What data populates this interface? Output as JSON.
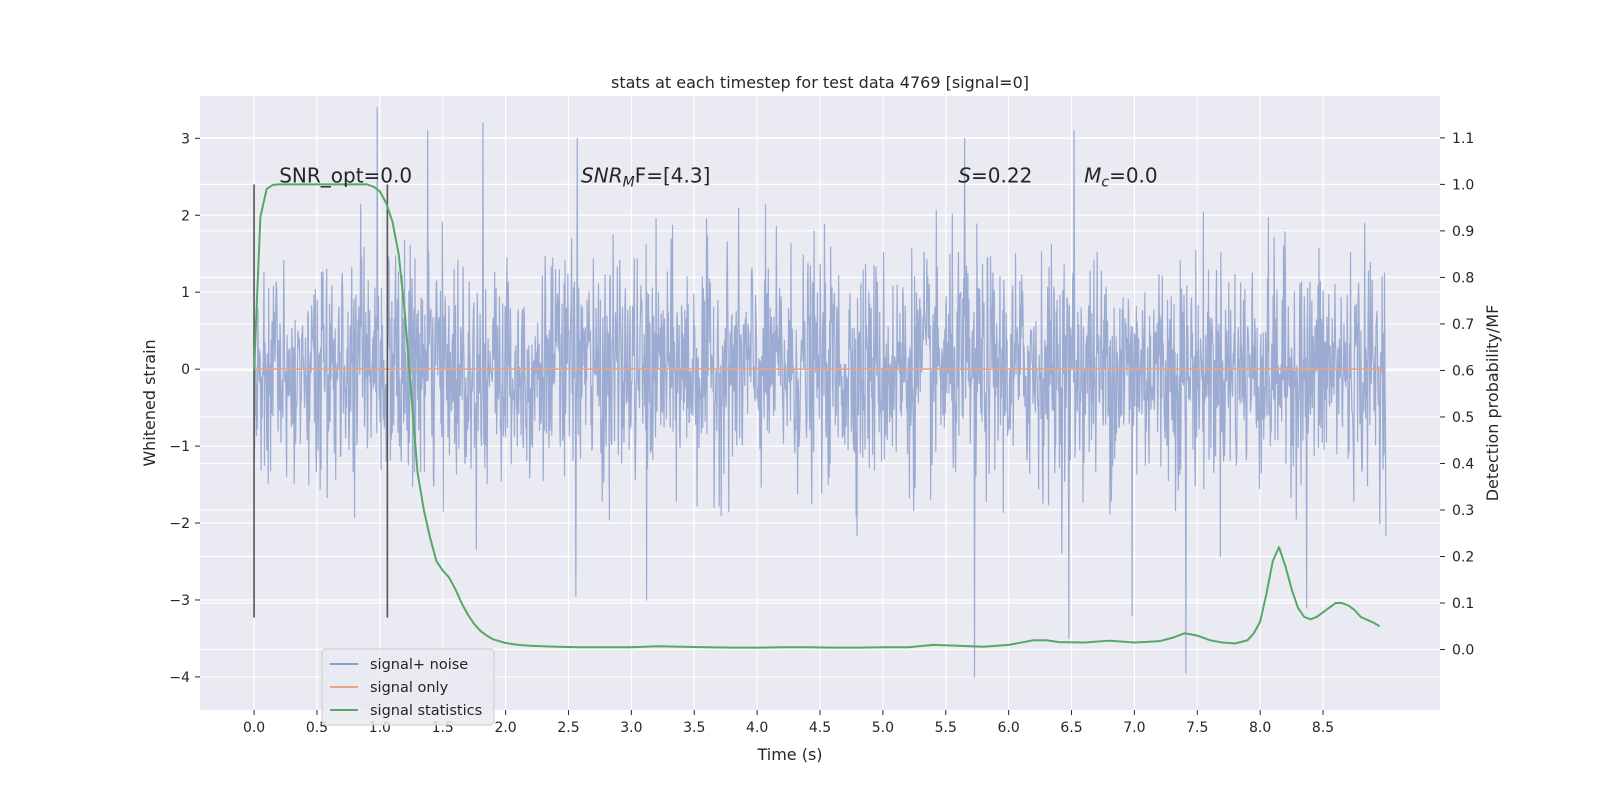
{
  "chart_data": {
    "type": "line",
    "title": "stats at each timestep for test data 4769 [signal=0]",
    "xlabel": "Time (s)",
    "ylabel_left": "Whitened strain",
    "ylabel_right": "Detection probability/MF",
    "xlim": [
      -0.43,
      9.43
    ],
    "ylim_left": [
      -4.43,
      3.55
    ],
    "ylim_right": [
      -0.13,
      1.19
    ],
    "x_ticks": [
      0.0,
      0.5,
      1.0,
      1.5,
      2.0,
      2.5,
      3.0,
      3.5,
      4.0,
      4.5,
      5.0,
      5.5,
      6.0,
      6.5,
      7.0,
      7.5,
      8.0,
      8.5
    ],
    "x_tick_labels": [
      "0.0",
      "0.5",
      "1.0",
      "1.5",
      "2.0",
      "2.5",
      "3.0",
      "3.5",
      "4.0",
      "4.5",
      "5.0",
      "5.5",
      "6.0",
      "6.5",
      "7.0",
      "7.5",
      "8.0",
      "8.5"
    ],
    "y_left_ticks": [
      3,
      2,
      1,
      0,
      -1,
      -2,
      -3,
      -4
    ],
    "y_left_tick_labels": [
      "3",
      "2",
      "1",
      "0",
      "−1",
      "−2",
      "−3",
      "−4"
    ],
    "y_right_ticks": [
      1.1,
      1.0,
      0.9,
      0.8,
      0.7,
      0.6,
      0.5,
      0.4,
      0.3,
      0.2,
      0.1,
      0.0
    ],
    "y_right_tick_labels": [
      "1.1",
      "1.0",
      "0.9",
      "0.8",
      "0.7",
      "0.6",
      "0.5",
      "0.4",
      "0.3",
      "0.2",
      "0.1",
      "0.0"
    ],
    "grid": true,
    "legend_position": "lower-left",
    "series": [
      {
        "name": "signal+ noise",
        "color": "#8da0cb",
        "axis": "left",
        "kind": "noise",
        "x_range": [
          0.0,
          9.0
        ],
        "envelope": [
          -1.6,
          1.6
        ],
        "notable_peaks": [
          [
            0.98,
            3.4
          ],
          [
            1.38,
            3.1
          ],
          [
            1.82,
            3.2
          ],
          [
            2.57,
            3.0
          ],
          [
            5.65,
            3.0
          ],
          [
            6.52,
            3.1
          ],
          [
            5.73,
            -4.0
          ],
          [
            6.48,
            -3.5
          ],
          [
            7.41,
            -3.95
          ],
          [
            6.98,
            -3.2
          ],
          [
            3.12,
            -3.0
          ],
          [
            2.56,
            -2.95
          ],
          [
            8.37,
            -3.1
          ]
        ]
      },
      {
        "name": "signal only",
        "color": "#e5a58a",
        "axis": "left",
        "x": [
          0.0,
          9.0
        ],
        "y": [
          0.0,
          0.0
        ]
      },
      {
        "name": "signal statistics",
        "color": "#55a868",
        "axis": "right",
        "x": [
          0.0,
          0.05,
          0.1,
          0.15,
          0.2,
          0.3,
          0.4,
          0.5,
          0.6,
          0.7,
          0.8,
          0.9,
          0.95,
          1.0,
          1.05,
          1.1,
          1.15,
          1.2,
          1.25,
          1.3,
          1.35,
          1.4,
          1.45,
          1.5,
          1.55,
          1.6,
          1.65,
          1.7,
          1.75,
          1.8,
          1.85,
          1.9,
          2.0,
          2.1,
          2.2,
          2.4,
          2.6,
          2.8,
          3.0,
          3.2,
          3.4,
          3.6,
          3.8,
          4.0,
          4.2,
          4.4,
          4.6,
          4.8,
          5.0,
          5.2,
          5.4,
          5.6,
          5.8,
          6.0,
          6.2,
          6.3,
          6.4,
          6.6,
          6.8,
          7.0,
          7.2,
          7.3,
          7.4,
          7.5,
          7.6,
          7.7,
          7.8,
          7.9,
          7.95,
          8.0,
          8.05,
          8.1,
          8.15,
          8.2,
          8.25,
          8.3,
          8.35,
          8.4,
          8.45,
          8.5,
          8.6,
          8.65,
          8.7,
          8.75,
          8.8,
          8.9,
          8.95
        ],
        "y": [
          0.6,
          0.93,
          0.99,
          0.999,
          1.0,
          1.0,
          1.0,
          1.0,
          1.0,
          1.0,
          1.0,
          1.0,
          0.995,
          0.985,
          0.96,
          0.92,
          0.85,
          0.72,
          0.55,
          0.38,
          0.3,
          0.24,
          0.19,
          0.17,
          0.155,
          0.13,
          0.1,
          0.075,
          0.055,
          0.04,
          0.03,
          0.022,
          0.014,
          0.01,
          0.008,
          0.006,
          0.005,
          0.005,
          0.005,
          0.007,
          0.006,
          0.005,
          0.004,
          0.004,
          0.005,
          0.005,
          0.004,
          0.004,
          0.005,
          0.005,
          0.01,
          0.008,
          0.006,
          0.01,
          0.02,
          0.02,
          0.016,
          0.015,
          0.019,
          0.015,
          0.018,
          0.025,
          0.035,
          0.03,
          0.02,
          0.015,
          0.013,
          0.02,
          0.035,
          0.06,
          0.12,
          0.19,
          0.22,
          0.18,
          0.13,
          0.09,
          0.07,
          0.065,
          0.07,
          0.08,
          0.1,
          0.1,
          0.095,
          0.085,
          0.07,
          0.058,
          0.05
        ]
      }
    ],
    "vertical_lines": [
      {
        "x": 0.0,
        "y_range": [
          -3.23,
          2.4
        ],
        "color": "#555555"
      },
      {
        "x": 1.06,
        "y_range": [
          -3.23,
          2.4
        ],
        "color": "#555555"
      }
    ],
    "annotations": [
      {
        "text": "SNR_opt=0.0",
        "x": 0.2,
        "y": 2.4,
        "italic": false
      },
      {
        "text": "SNR_MF=[4.3]",
        "x": 2.6,
        "y": 2.4,
        "italic": false
      },
      {
        "text": "S=0.22",
        "x": 5.6,
        "y": 2.4,
        "italic": false
      },
      {
        "text": "M_c=0.0",
        "x": 6.6,
        "y": 2.4,
        "italic": false
      }
    ]
  }
}
